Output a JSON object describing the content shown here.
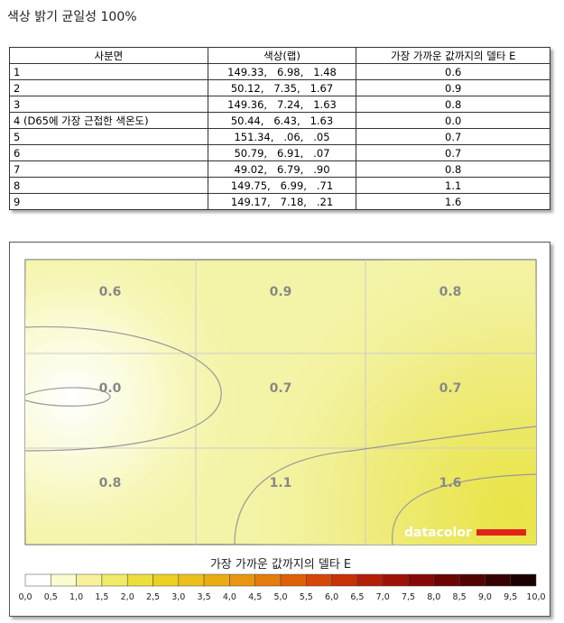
{
  "header": {
    "title": "색상 밝기 균일성 100%"
  },
  "table": {
    "columns": [
      "사분면",
      "색상(랩)",
      "가장 가까운 값까지의 델타 E"
    ],
    "rows": [
      [
        "1",
        "149.33,   6.98,   1.48",
        "0.6"
      ],
      [
        "2",
        "50.12,   7.35,   1.67",
        "0.9"
      ],
      [
        "3",
        "149.36,   7.24,   1.63",
        "0.8"
      ],
      [
        "4 (D65에 가장 근접한 색온도)",
        "50.44,   6.43,   1.63",
        "0.0"
      ],
      [
        "5",
        "151.34,   .06,   .05",
        "0.7"
      ],
      [
        "6",
        "50.79,   6.91,   .07",
        "0.7"
      ],
      [
        "7",
        "49.02,   6.79,   .90",
        "0.8"
      ],
      [
        "8",
        "149.75,   6.99,   .71",
        "1.1"
      ],
      [
        "9",
        "149.17,   7.18,   .21",
        "1.6"
      ]
    ]
  },
  "figure": {
    "cells": [
      "0.6",
      "0.9",
      "0.8",
      "0.0",
      "0.7",
      "0.7",
      "0.8",
      "1.1",
      "1.6"
    ],
    "logo": "datacolor",
    "legend_title": "가장 가까운 값까지의 델타 E",
    "scale_labels": [
      "0,0",
      "0,5",
      "1,0",
      "1,5",
      "2,0",
      "2,5",
      "3,0",
      "3,5",
      "4,0",
      "4,5",
      "5,0",
      "5,5",
      "6,0",
      "6,5",
      "7,0",
      "7,5",
      "8,0",
      "8,5",
      "9,0",
      "9,5",
      "10,0"
    ]
  }
}
